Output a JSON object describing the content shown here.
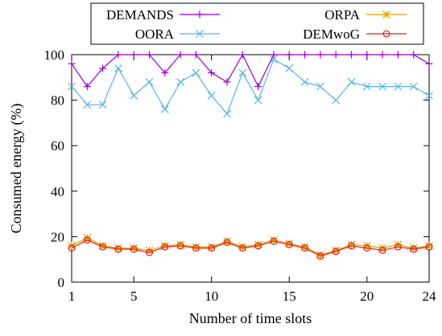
{
  "chart_data": {
    "type": "line",
    "xlabel": "Number of time slots",
    "ylabel": "Consumed energy (%)",
    "xlim": [
      1,
      24
    ],
    "ylim": [
      0,
      100
    ],
    "xticks": [
      1,
      5,
      10,
      15,
      20,
      24
    ],
    "yticks": [
      0,
      20,
      40,
      60,
      80,
      100
    ],
    "grid": false,
    "legend_position": "top, above plot, two columns",
    "x": [
      1,
      2,
      3,
      4,
      5,
      6,
      7,
      8,
      9,
      10,
      11,
      12,
      13,
      14,
      15,
      16,
      17,
      18,
      19,
      20,
      21,
      22,
      23,
      24
    ],
    "series": [
      {
        "name": "DEMANDS",
        "color": "#9400d3",
        "marker": "plus",
        "values": [
          96,
          86,
          94,
          100,
          100,
          100,
          92,
          100,
          100,
          92,
          88,
          100,
          86,
          100,
          100,
          100,
          100,
          100,
          100,
          100,
          100,
          100,
          100,
          96
        ]
      },
      {
        "name": "OORA",
        "color": "#56b4e9",
        "marker": "cross",
        "values": [
          86,
          78,
          78,
          94,
          82,
          88,
          76,
          88,
          92,
          82,
          74,
          92,
          80,
          98,
          94,
          88,
          86,
          80,
          88,
          86,
          86,
          86,
          86,
          82
        ]
      },
      {
        "name": "ORPA",
        "color": "#e69f00",
        "marker": "star",
        "values": [
          16,
          19.5,
          16,
          15,
          15,
          14,
          16,
          16.5,
          15.5,
          15.5,
          18,
          15.5,
          16.5,
          18.5,
          17,
          15.5,
          12,
          14,
          16.5,
          16,
          15,
          16.5,
          15,
          16
        ]
      },
      {
        "name": "DEMwoG",
        "color": "#e51e10",
        "marker": "circle",
        "values": [
          15,
          18.5,
          15.5,
          14.5,
          14.5,
          13,
          15.5,
          16,
          15,
          15,
          17.5,
          15,
          16,
          18,
          16.5,
          15,
          11.5,
          13.5,
          16,
          15,
          14,
          15.5,
          14.5,
          15.5
        ]
      }
    ]
  }
}
